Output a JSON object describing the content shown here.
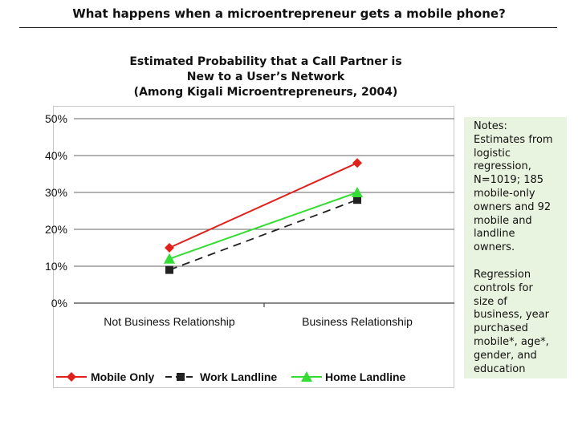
{
  "page_title": "What happens when a microentrepreneur gets a mobile phone?",
  "chart_data": {
    "type": "line",
    "title_lines": [
      "Estimated Probability that a Call Partner is",
      "New to a User’s Network",
      "(Among Kigali Microentrepreneurs, 2004)"
    ],
    "categories": [
      "Not Business Relationship",
      "Business Relationship"
    ],
    "y_ticks": [
      "0%",
      "10%",
      "20%",
      "30%",
      "40%",
      "50%"
    ],
    "ylim": [
      0,
      0.5
    ],
    "grid": true,
    "legend_position": "bottom",
    "series": [
      {
        "name": "Mobile Only",
        "values": [
          0.15,
          0.38
        ],
        "color": "#e0201a",
        "marker": "diamond",
        "dash": "solid"
      },
      {
        "name": "Work Landline",
        "values": [
          0.09,
          0.28
        ],
        "color": "#222222",
        "marker": "square",
        "dash": "dashed"
      },
      {
        "name": "Home Landline",
        "values": [
          0.12,
          0.3
        ],
        "color": "#33dd33",
        "marker": "triangle",
        "dash": "solid"
      }
    ]
  },
  "notes": {
    "paragraph1": "Notes:\nEstimates from\nlogistic\nregression,\nN=1019; 185\nmobile-only\nowners and 92\nmobile and\nlandline\nowners.",
    "paragraph2": "Regression\ncontrols for\nsize of\nbusiness, year\npurchased\nmobile*, age*,\ngender, and\neducation"
  }
}
